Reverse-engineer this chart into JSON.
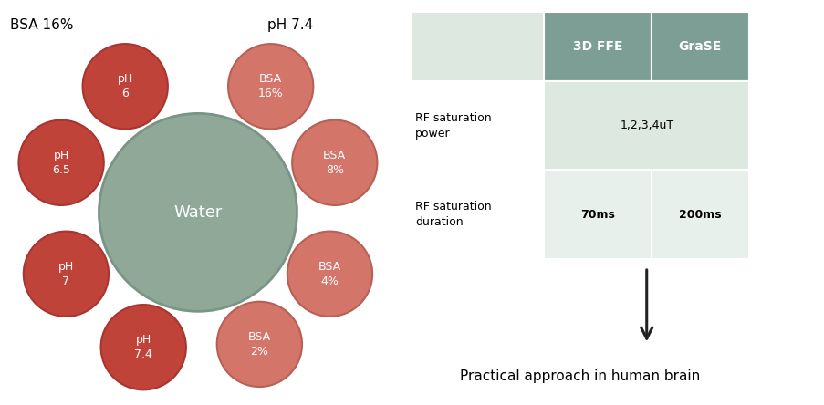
{
  "fig_width": 9.04,
  "fig_height": 4.44,
  "dpi": 100,
  "background_color": "#ffffff",
  "water_color": "#8fa898",
  "water_edge_color": "#7a9485",
  "water_label": "Water",
  "water_label_color": "white",
  "water_label_fontsize": 13,
  "ph_color": "#c0433a",
  "ph_edge_color": "#a83530",
  "bsa_color": "#d4756a",
  "bsa_edge_color": "#b86055",
  "ph_labels": [
    "pH\n6",
    "pH\n6.5",
    "pH\n7",
    "pH\n7.4"
  ],
  "ph_angles": [
    120,
    160,
    205,
    248
  ],
  "bsa_labels": [
    "BSA\n16%",
    "BSA\n8%",
    "BSA\n4%",
    "BSA\n2%"
  ],
  "bsa_angles": [
    60,
    20,
    335,
    295
  ],
  "annotation_bsa": "BSA 16%",
  "annotation_ph": "pH 7.4",
  "col_headers": [
    "",
    "3D FFE",
    "GraSE"
  ],
  "rows": [
    [
      "RF saturation\npower",
      "1,2,3,4uT",
      ""
    ],
    [
      "RF saturation\nduration",
      "70ms",
      "200ms"
    ]
  ],
  "header_color": "#7d9e94",
  "row1_color": "#dce8e0",
  "row2_color": "#e8f0ec",
  "white": "#ffffff",
  "arrow_label": "Practical approach in human brain"
}
